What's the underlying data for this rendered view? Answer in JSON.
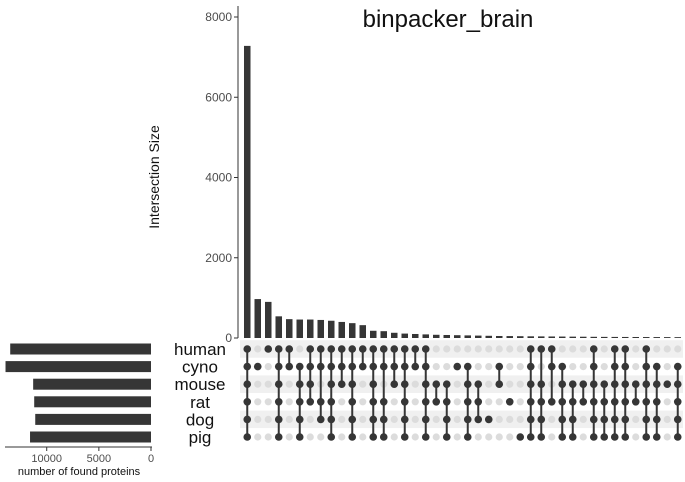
{
  "chart_data": {
    "type": "upset",
    "title": "binpacker_brain",
    "ylabel": "Intersection Size",
    "ylim": [
      0,
      8000
    ],
    "yticks": [
      0,
      2000,
      4000,
      6000,
      8000
    ],
    "set_size_label": "number of found proteins",
    "set_size_ticks": [
      10000,
      5000,
      0
    ],
    "set_size_lim": [
      0,
      14000
    ],
    "sets": [
      "human",
      "cyno",
      "mouse",
      "rat",
      "dog",
      "pig"
    ],
    "set_sizes": [
      13500,
      13950,
      11300,
      11200,
      11100,
      11600
    ],
    "intersection_sizes": [
      7280,
      970,
      900,
      540,
      470,
      460,
      460,
      450,
      430,
      400,
      370,
      320,
      180,
      170,
      130,
      110,
      100,
      90,
      80,
      75,
      70,
      65,
      60,
      55,
      50,
      48,
      45,
      42,
      40,
      38,
      36,
      34,
      32,
      30,
      28,
      27,
      26,
      25,
      24,
      23,
      22,
      21
    ],
    "intersections": [
      [
        0,
        1,
        2,
        3,
        4,
        5
      ],
      [
        1
      ],
      [
        0
      ],
      [
        0,
        1,
        2,
        3,
        4,
        5
      ],
      [
        0,
        1
      ],
      [
        1,
        2,
        3,
        4,
        5
      ],
      [
        0,
        1,
        2,
        3
      ],
      [
        0,
        1,
        3,
        4
      ],
      [
        0,
        1,
        2,
        3,
        4,
        5
      ],
      [
        0,
        1,
        2
      ],
      [
        0,
        1,
        2,
        3,
        4,
        5
      ],
      [
        0,
        1
      ],
      [
        0,
        1,
        2,
        3,
        4,
        5
      ],
      [
        0,
        1,
        3,
        4,
        5
      ],
      [
        0,
        1,
        2
      ],
      [
        0,
        1,
        2,
        3,
        4,
        5
      ],
      [
        0,
        1
      ],
      [
        0,
        1,
        2,
        3,
        4,
        5
      ],
      [
        2,
        3
      ],
      [
        2,
        3,
        4,
        5
      ],
      [
        1
      ],
      [
        1,
        2,
        3,
        4,
        5
      ],
      [
        2,
        3,
        4
      ],
      [
        4
      ],
      [
        1,
        2
      ],
      [
        3
      ],
      [
        5
      ],
      [
        0,
        1,
        2,
        3,
        4,
        5
      ],
      [
        0,
        2,
        3,
        4,
        5
      ],
      [
        0,
        1,
        3
      ],
      [
        1,
        2,
        3,
        4,
        5
      ],
      [
        2,
        3,
        4,
        5
      ],
      [
        2,
        3
      ],
      [
        0,
        1,
        2,
        3,
        4,
        5
      ],
      [
        2,
        3,
        4,
        5
      ],
      [
        0,
        1,
        2,
        3,
        4,
        5
      ],
      [
        0,
        1,
        2,
        3,
        4,
        5
      ],
      [
        2,
        3
      ],
      [
        0,
        1,
        2,
        3,
        4,
        5
      ],
      [
        1,
        2,
        3,
        4,
        5
      ],
      [
        2
      ],
      [
        1,
        2,
        3,
        4,
        5
      ]
    ],
    "grid": false,
    "colors": {
      "bar": "#363636",
      "dot_active": "#363636",
      "dot_inactive": "#dcdcdc",
      "stripe": "#f0f0f0"
    }
  }
}
